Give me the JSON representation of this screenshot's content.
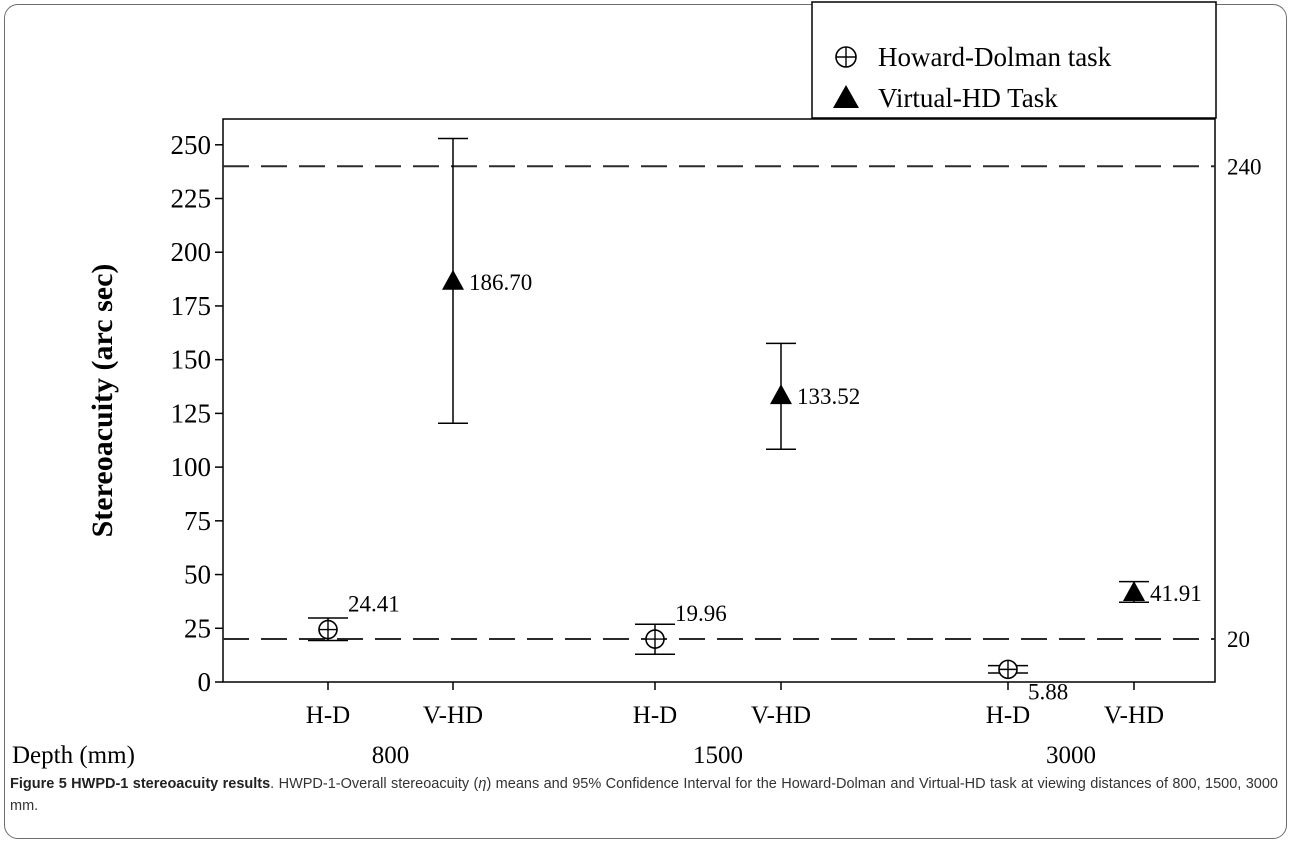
{
  "chart_data": {
    "type": "scatter",
    "ylabel": "Stereoacuity (arc sec)",
    "ylim": [
      0,
      262
    ],
    "yticks": [
      0,
      25,
      50,
      75,
      100,
      125,
      150,
      175,
      200,
      225,
      250
    ],
    "x_title": "Depth (mm)",
    "groups": [
      {
        "depth": "800",
        "points": [
          {
            "label": "H-D",
            "series": "Howard-Dolman task",
            "mean": 24.41,
            "mean_label": "24.41",
            "ci": [
              19.3,
              29.8
            ]
          },
          {
            "label": "V-HD",
            "series": "Virtual-HD Task",
            "mean": 186.7,
            "mean_label": "186.70",
            "ci": [
              120.4,
              252.9
            ]
          }
        ]
      },
      {
        "depth": "1500",
        "points": [
          {
            "label": "H-D",
            "series": "Howard-Dolman task",
            "mean": 19.96,
            "mean_label": "19.96",
            "ci": [
              12.9,
              26.9
            ]
          },
          {
            "label": "V-HD",
            "series": "Virtual-HD Task",
            "mean": 133.52,
            "mean_label": "133.52",
            "ci": [
              108.3,
              157.6
            ]
          }
        ]
      },
      {
        "depth": "3000",
        "points": [
          {
            "label": "H-D",
            "series": "Howard-Dolman task",
            "mean": 5.88,
            "mean_label": "5.88",
            "ci": [
              4.2,
              7.6
            ]
          },
          {
            "label": "V-HD",
            "series": "Virtual-HD Task",
            "mean": 41.91,
            "mean_label": "41.91",
            "ci": [
              37.1,
              46.7
            ]
          }
        ]
      }
    ],
    "reference_lines": [
      {
        "value": 240,
        "label": "240"
      },
      {
        "value": 20,
        "label": "20"
      }
    ],
    "legend": {
      "placement": "top-right",
      "entries": [
        {
          "name": "Howard-Dolman task",
          "marker": "circle-plus"
        },
        {
          "name": "Virtual-HD Task",
          "marker": "triangle"
        }
      ]
    },
    "grid": false,
    "colors": {
      "ink": "#000000",
      "dash": "#2b2b2b"
    }
  },
  "caption": {
    "bold": "Figure 5 HWPD-1 stereoacuity results",
    "text_before_eta": ". HWPD-1-Overall stereoacuity (",
    "eta": "η",
    "text_after_eta": ") means and 95% Confidence Interval for the Howard-Dolman and Virtual-HD task at viewing distances of 800, 1500, 3000 mm."
  }
}
